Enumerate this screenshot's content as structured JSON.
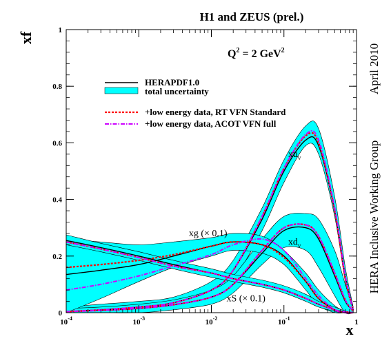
{
  "chart_data": {
    "type": "line",
    "title": "H1 and ZEUS (prel.)",
    "subtitle": "Q² = 2 GeV²",
    "xlabel": "x",
    "ylabel": "xf",
    "xscale": "log",
    "xlim": [
      0.0001,
      1
    ],
    "ylim": [
      0,
      1
    ],
    "x_ticks": [
      {
        "v": 0.0001,
        "b": "10",
        "e": "-4"
      },
      {
        "v": 0.001,
        "b": "10",
        "e": "-3"
      },
      {
        "v": 0.01,
        "b": "10",
        "e": "-2"
      },
      {
        "v": 0.1,
        "b": "10",
        "e": "-1"
      },
      {
        "v": 1,
        "b": "1",
        "e": ""
      }
    ],
    "y_ticks": [
      {
        "v": 0,
        "label": "0"
      },
      {
        "v": 0.2,
        "label": "0.2"
      },
      {
        "v": 0.4,
        "label": "0.4"
      },
      {
        "v": 0.6,
        "label": "0.6"
      },
      {
        "v": 0.8,
        "label": "0.8"
      },
      {
        "v": 1,
        "label": "1"
      }
    ],
    "side_labels": [
      "HERA Inclusive Working Group",
      "April 2010"
    ],
    "legend_placement": "top-left",
    "legend": [
      {
        "label": "HERAPDF1.0",
        "style": "solid",
        "color": "#000000"
      },
      {
        "label": "total uncertainty",
        "style": "band",
        "color": "#00ffff"
      },
      {
        "label": "+low energy data, RT VFN Standard",
        "style": "dotted",
        "color": "#ff0000"
      },
      {
        "label": "+low energy data, ACOT VFN full",
        "style": "dashdot",
        "color": "#cc00ff"
      }
    ],
    "x": [
      0.0001,
      0.0003,
      0.001,
      0.003,
      0.01,
      0.02,
      0.05,
      0.1,
      0.2,
      0.3,
      0.5,
      0.7,
      0.9
    ],
    "series": [
      {
        "name": "xu_v",
        "label": "xu",
        "sub": "v",
        "central": [
          0.004,
          0.01,
          0.02,
          0.035,
          0.08,
          0.15,
          0.33,
          0.5,
          0.61,
          0.59,
          0.36,
          0.13,
          0.012
        ],
        "rt": [
          0.004,
          0.01,
          0.02,
          0.035,
          0.08,
          0.15,
          0.34,
          0.51,
          0.625,
          0.6,
          0.36,
          0.12,
          0.01
        ],
        "acot": [
          0.004,
          0.01,
          0.02,
          0.035,
          0.08,
          0.15,
          0.34,
          0.51,
          0.63,
          0.61,
          0.37,
          0.13,
          0.01
        ],
        "unc_lo": [
          0.0,
          0.0,
          0.005,
          0.015,
          0.05,
          0.115,
          0.29,
          0.46,
          0.59,
          0.56,
          0.34,
          0.11,
          0.0
        ],
        "unc_hi": [
          0.02,
          0.03,
          0.04,
          0.055,
          0.11,
          0.185,
          0.37,
          0.54,
          0.66,
          0.65,
          0.41,
          0.16,
          0.02
        ],
        "label_at": [
          0.14,
          0.55
        ]
      },
      {
        "name": "xd_v",
        "label": "xd",
        "sub": "v",
        "central": [
          0.004,
          0.008,
          0.015,
          0.028,
          0.055,
          0.1,
          0.21,
          0.29,
          0.3,
          0.26,
          0.13,
          0.04,
          0.005
        ],
        "rt": [
          0.004,
          0.008,
          0.015,
          0.028,
          0.055,
          0.1,
          0.22,
          0.3,
          0.31,
          0.27,
          0.14,
          0.045,
          0.005
        ],
        "acot": [
          0.004,
          0.008,
          0.015,
          0.028,
          0.055,
          0.1,
          0.22,
          0.3,
          0.31,
          0.27,
          0.14,
          0.045,
          0.005
        ],
        "unc_lo": [
          0.0,
          0.0,
          0.0,
          0.01,
          0.03,
          0.07,
          0.17,
          0.23,
          0.22,
          0.16,
          0.06,
          0.0,
          0.0
        ],
        "unc_hi": [
          0.015,
          0.02,
          0.03,
          0.045,
          0.08,
          0.13,
          0.26,
          0.34,
          0.35,
          0.33,
          0.22,
          0.1,
          0.015
        ],
        "label_at": [
          0.14,
          0.24
        ]
      },
      {
        "name": "xg (× 0.1)",
        "label": "xg (× 0.1)",
        "sub": "",
        "central": [
          0.135,
          0.15,
          0.17,
          0.2,
          0.235,
          0.25,
          0.24,
          0.2,
          0.11,
          0.05,
          0.01,
          0.0,
          0.0
        ],
        "rt": [
          0.16,
          0.17,
          0.185,
          0.205,
          0.235,
          0.25,
          0.24,
          0.195,
          0.11,
          0.05,
          0.01,
          0.0,
          0.0
        ],
        "acot": [
          0.08,
          0.1,
          0.13,
          0.165,
          0.205,
          0.24,
          0.26,
          0.22,
          0.12,
          0.06,
          0.01,
          0.0,
          0.0
        ],
        "unc_lo": [
          0.0,
          0.05,
          0.11,
          0.16,
          0.2,
          0.22,
          0.21,
          0.17,
          0.08,
          0.025,
          0.0,
          0.0,
          0.0
        ],
        "unc_hi": [
          0.26,
          0.25,
          0.24,
          0.25,
          0.265,
          0.28,
          0.27,
          0.22,
          0.14,
          0.08,
          0.025,
          0.005,
          0.0
        ],
        "label_at": [
          0.009,
          0.27
        ]
      },
      {
        "name": "xS (× 0.1)",
        "label": "xS (× 0.1)",
        "sub": "",
        "central": [
          0.255,
          0.23,
          0.2,
          0.17,
          0.14,
          0.12,
          0.1,
          0.08,
          0.05,
          0.03,
          0.01,
          0.003,
          0.0
        ],
        "rt": [
          0.25,
          0.225,
          0.195,
          0.165,
          0.14,
          0.12,
          0.1,
          0.08,
          0.05,
          0.03,
          0.01,
          0.003,
          0.0
        ],
        "acot": [
          0.25,
          0.225,
          0.195,
          0.165,
          0.14,
          0.12,
          0.1,
          0.08,
          0.05,
          0.03,
          0.01,
          0.003,
          0.0
        ],
        "unc_lo": [
          0.24,
          0.215,
          0.185,
          0.155,
          0.125,
          0.11,
          0.09,
          0.07,
          0.04,
          0.02,
          0.005,
          0.0,
          0.0
        ],
        "unc_hi": [
          0.275,
          0.245,
          0.215,
          0.185,
          0.155,
          0.135,
          0.115,
          0.095,
          0.065,
          0.04,
          0.02,
          0.006,
          0.0
        ],
        "label_at": [
          0.03,
          0.04
        ]
      }
    ]
  }
}
